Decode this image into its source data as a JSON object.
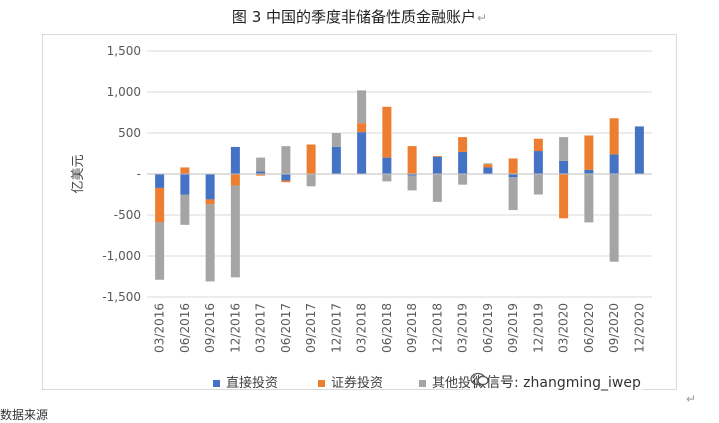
{
  "chart_data": {
    "type": "bar",
    "title": "图 3 中国的季度非储备性质金融账户",
    "ylabel": "亿美元",
    "ylim": [
      -1500,
      1500
    ],
    "yticks": [
      "-1,500",
      "-1,000",
      "-500",
      "-",
      "500",
      "1,000",
      "1,500"
    ],
    "ytick_values": [
      -1500,
      -1000,
      -500,
      0,
      500,
      1000,
      1500
    ],
    "grid": true,
    "legend_position": "bottom",
    "stacked": true,
    "categories": [
      "03/2016",
      "06/2016",
      "09/2016",
      "12/2016",
      "03/2017",
      "06/2017",
      "09/2017",
      "12/2017",
      "03/2018",
      "06/2018",
      "09/2018",
      "12/2018",
      "03/2019",
      "06/2019",
      "09/2019",
      "12/2019",
      "03/2020",
      "06/2020",
      "09/2020",
      "12/2020"
    ],
    "series": [
      {
        "name": "直接投资",
        "color": "#4472c4",
        "values": [
          -170,
          -250,
          -310,
          330,
          30,
          -80,
          0,
          330,
          510,
          200,
          -20,
          210,
          270,
          80,
          -40,
          280,
          160,
          50,
          240,
          580
        ]
      },
      {
        "name": "证券投资",
        "color": "#ed7d31",
        "values": [
          -420,
          80,
          -60,
          -140,
          -20,
          -20,
          360,
          0,
          110,
          620,
          340,
          10,
          180,
          40,
          190,
          150,
          -540,
          420,
          440,
          0
        ]
      },
      {
        "name": "其他投资",
        "color": "#a5a5a5",
        "values": [
          -700,
          -370,
          -940,
          -1120,
          170,
          340,
          -150,
          170,
          400,
          -90,
          -180,
          -340,
          -130,
          10,
          -400,
          -250,
          290,
          -590,
          -1070,
          0
        ]
      }
    ]
  },
  "footer": {
    "text": "数据来源"
  },
  "watermark": {
    "text": "微信号: zhangming_iwep"
  },
  "return_mark": "↵"
}
